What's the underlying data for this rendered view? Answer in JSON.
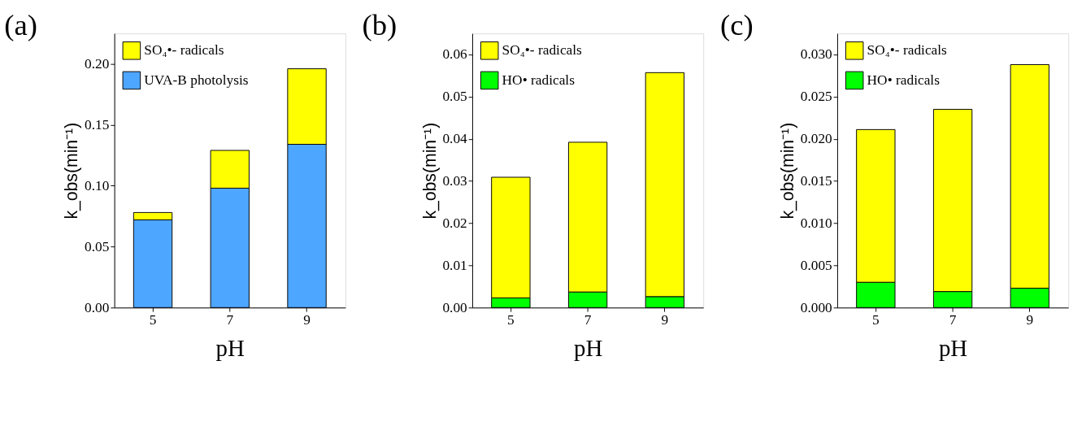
{
  "chart_data": [
    {
      "type": "bar",
      "title": "(a)",
      "xlabel": "pH",
      "ylabel": "k_obs(min⁻¹)",
      "categories": [
        "5",
        "7",
        "9"
      ],
      "stacked": true,
      "legend": "top left",
      "grid": false,
      "series": [
        {
          "name": "UVA-B photolysis",
          "color": "#4da6ff",
          "values": [
            0.072,
            0.098,
            0.134
          ]
        },
        {
          "name": "SO₄•- radicals",
          "color": "#ffff00",
          "values": [
            0.006,
            0.031,
            0.062
          ]
        }
      ],
      "ylim": [
        0,
        0.225
      ],
      "yticks": [
        {
          "value": 0,
          "label": "0.00"
        },
        {
          "value": 0.05,
          "label": "0.05"
        },
        {
          "value": 0.1,
          "label": "0.10"
        },
        {
          "value": 0.15,
          "label": "0.15"
        },
        {
          "value": 0.2,
          "label": "0.20"
        }
      ]
    },
    {
      "type": "bar",
      "title": "(b)",
      "xlabel": "pH",
      "ylabel": "k_obs(min⁻¹)",
      "categories": [
        "5",
        "7",
        "9"
      ],
      "stacked": true,
      "legend": "top left",
      "grid": false,
      "series": [
        {
          "name": "HO• radicals",
          "color": "#00ff00",
          "values": [
            0.0023,
            0.0037,
            0.0026
          ]
        },
        {
          "name": "SO₄•- radicals",
          "color": "#ffff00",
          "values": [
            0.0286,
            0.0355,
            0.0531
          ]
        }
      ],
      "ylim": [
        0,
        0.065
      ],
      "yticks": [
        {
          "value": 0,
          "label": "0.00"
        },
        {
          "value": 0.01,
          "label": "0.01"
        },
        {
          "value": 0.02,
          "label": "0.02"
        },
        {
          "value": 0.03,
          "label": "0.03"
        },
        {
          "value": 0.04,
          "label": "0.04"
        },
        {
          "value": 0.05,
          "label": "0.05"
        },
        {
          "value": 0.06,
          "label": "0.06"
        }
      ]
    },
    {
      "type": "bar",
      "title": "(c)",
      "xlabel": "pH",
      "ylabel": "k_obs(min⁻¹)",
      "categories": [
        "5",
        "7",
        "9"
      ],
      "stacked": true,
      "legend": "top left",
      "grid": false,
      "series": [
        {
          "name": "HO• radicals",
          "color": "#00ff00",
          "values": [
            0.003,
            0.0019,
            0.0023
          ]
        },
        {
          "name": "SO₄•- radicals",
          "color": "#ffff00",
          "values": [
            0.0181,
            0.0216,
            0.0265
          ]
        }
      ],
      "ylim": [
        0,
        0.0325
      ],
      "yticks": [
        {
          "value": 0,
          "label": "0.000"
        },
        {
          "value": 0.005,
          "label": "0.005"
        },
        {
          "value": 0.01,
          "label": "0.010"
        },
        {
          "value": 0.015,
          "label": "0.015"
        },
        {
          "value": 0.02,
          "label": "0.020"
        },
        {
          "value": 0.025,
          "label": "0.025"
        },
        {
          "value": 0.03,
          "label": "0.030"
        }
      ]
    }
  ]
}
